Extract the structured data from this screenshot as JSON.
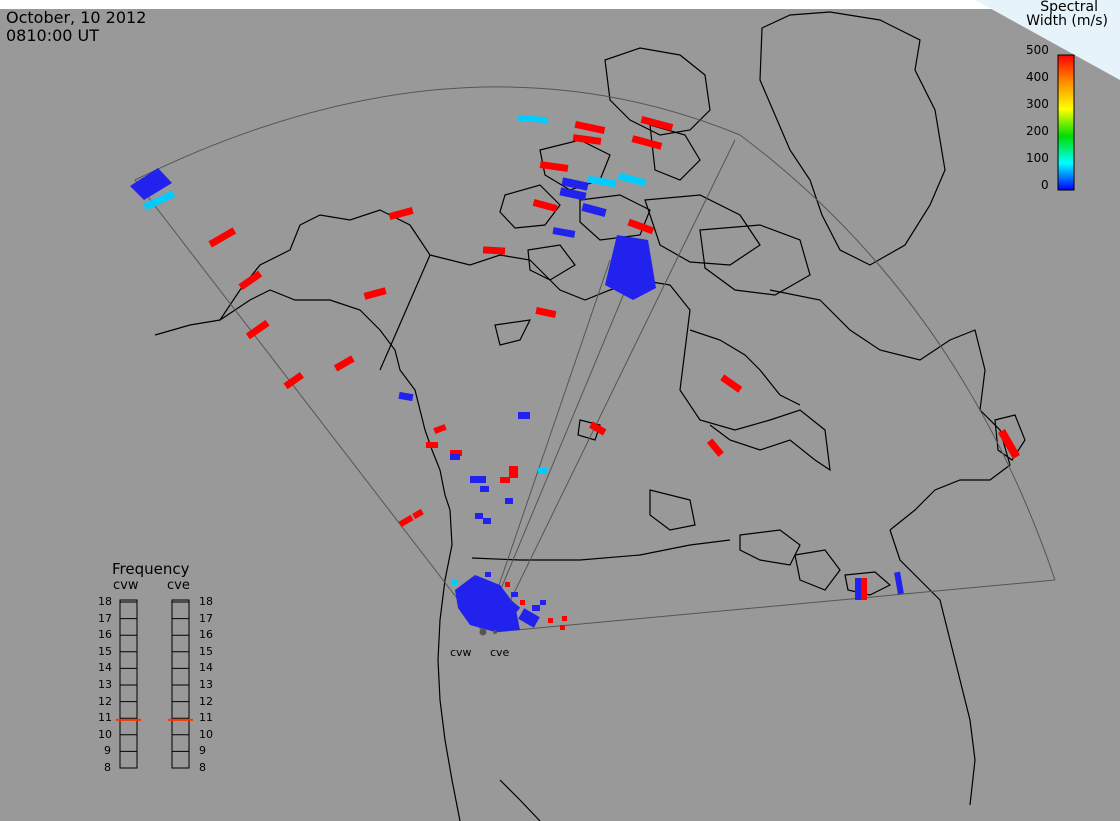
{
  "header": {
    "date": "October, 10 2012",
    "time": "0810:00 UT"
  },
  "colorbar": {
    "title_line1": "Spectral",
    "title_line2": "Width (m/s)",
    "ticks": [
      "500",
      "400",
      "300",
      "200",
      "100",
      "0"
    ],
    "gradient": [
      "#ff0000",
      "#ff8c00",
      "#ffff00",
      "#00dd00",
      "#00ffff",
      "#0000ff"
    ]
  },
  "stations": [
    {
      "label": "cvw"
    },
    {
      "label": "cve"
    }
  ],
  "frequency": {
    "title": "Frequency",
    "panels": [
      {
        "label": "cvw",
        "value": 10.9
      },
      {
        "label": "cve",
        "value": 10.9
      }
    ],
    "scale": [
      "18",
      "17",
      "16",
      "15",
      "14",
      "13",
      "12",
      "11",
      "10",
      "9",
      "8"
    ],
    "marker_color": "#ff3300"
  },
  "colors": {
    "background": "#999999",
    "coast": "#000000",
    "fov": "#555555",
    "high_width": "#ff0000",
    "low_width": "#2222ee",
    "mid_width": "#00ccff"
  }
}
